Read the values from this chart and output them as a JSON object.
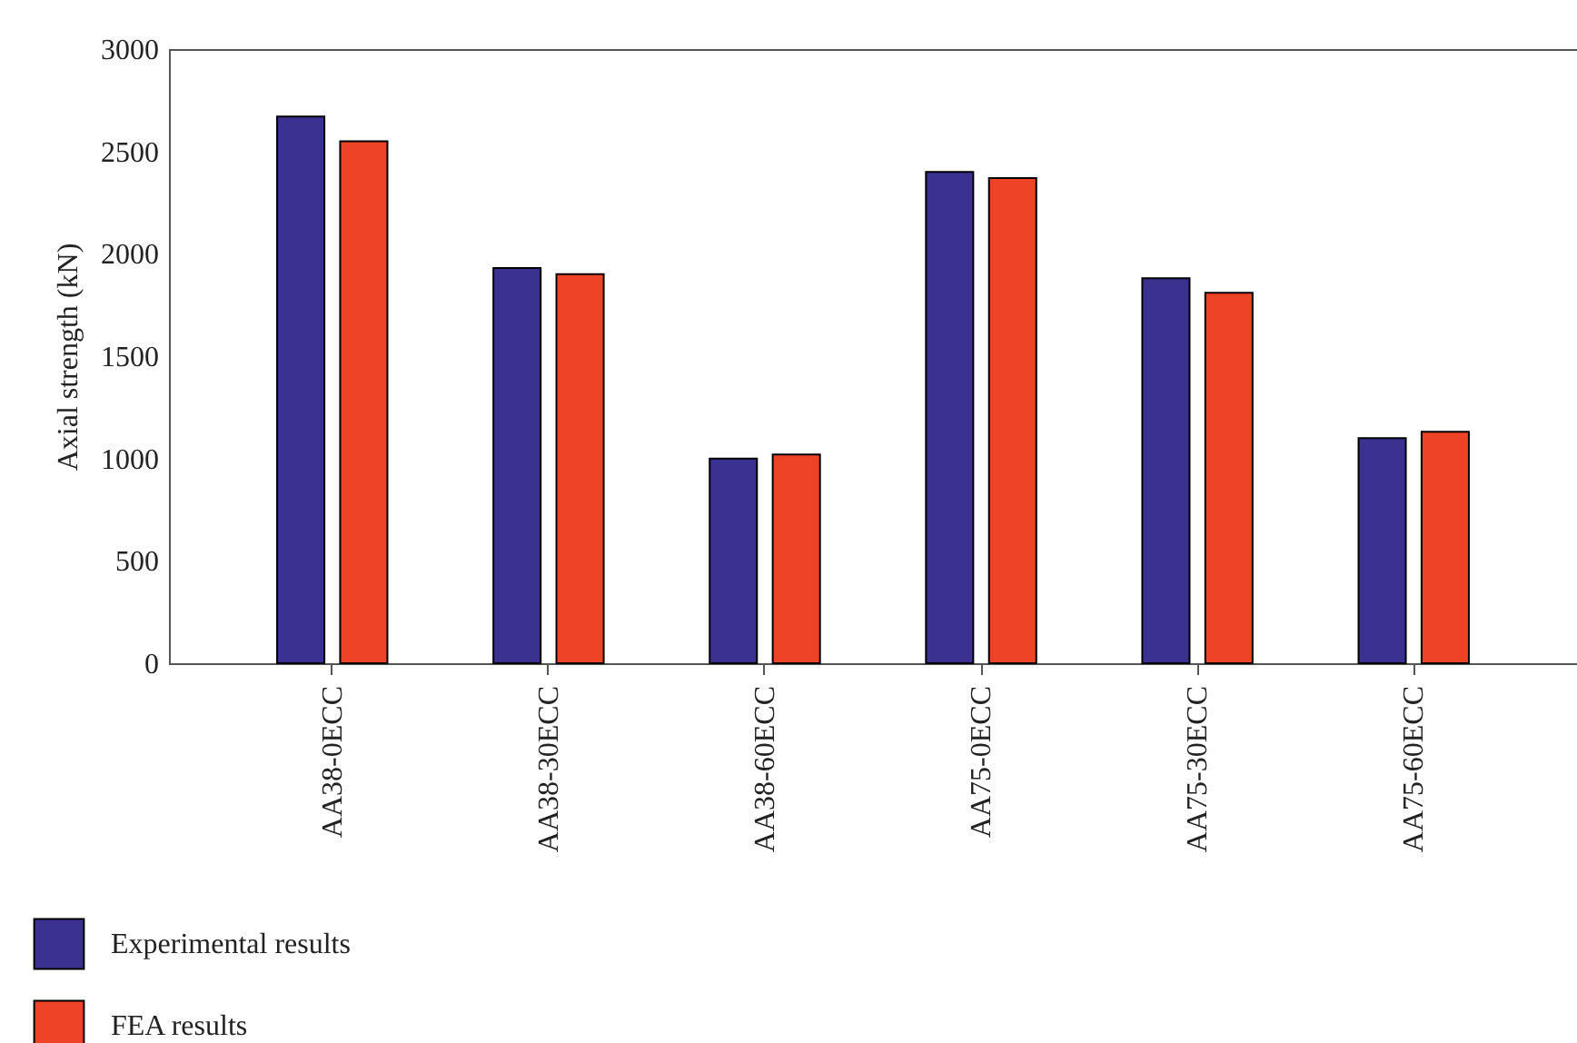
{
  "chart_data": {
    "type": "bar",
    "ylabel": "Axial strength (kN)",
    "categories": [
      "AA38-0ECC",
      "AA38-30ECC",
      "AA38-60ECC",
      "AA75-0ECC",
      "AA75-30ECC",
      "AA75-60ECC"
    ],
    "series": [
      {
        "name": "Experimental results",
        "color": "#3a3190",
        "values": [
          2670,
          1930,
          1000,
          2400,
          1880,
          1100
        ]
      },
      {
        "name": "FEA results",
        "color": "#ee4326",
        "values": [
          2550,
          1900,
          1020,
          2370,
          1810,
          1130
        ]
      }
    ],
    "ylim": [
      0,
      3000
    ],
    "yticks": [
      0,
      500,
      1000,
      1500,
      2000,
      2500,
      3000
    ],
    "legend": "bottom left"
  }
}
